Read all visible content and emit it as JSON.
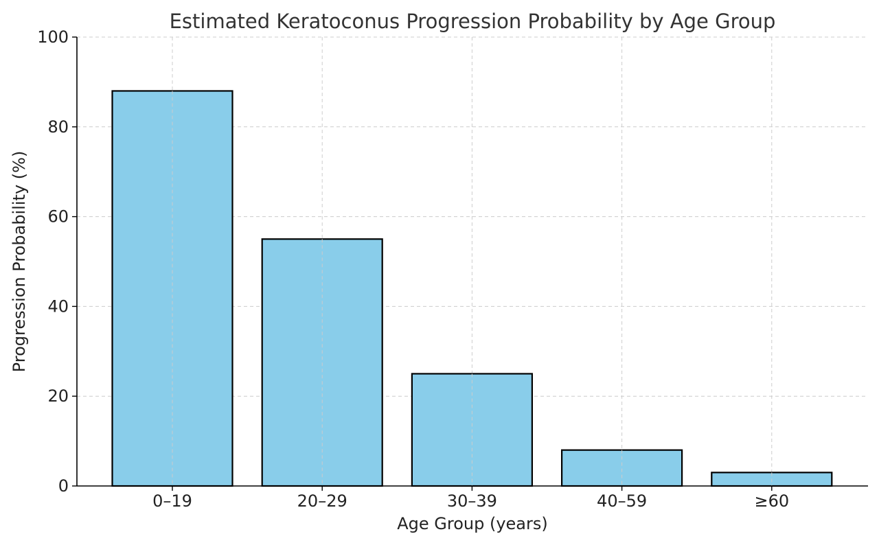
{
  "chart_data": {
    "type": "bar",
    "title": "Estimated Keratoconus Progression Probability by Age Group",
    "xlabel": "Age Group (years)",
    "ylabel": "Progression Probability (%)",
    "categories": [
      "0–19",
      "20–29",
      "30–39",
      "40–59",
      "≥60"
    ],
    "values": [
      88,
      55,
      25,
      8,
      3
    ],
    "ylim": [
      0,
      100
    ],
    "yticks": [
      0,
      20,
      40,
      60,
      80,
      100
    ],
    "grid": true,
    "legend": "none",
    "colors": {
      "bar_fill": "#89CDEA",
      "bar_edge": "#000000",
      "grid": "#cccccc"
    }
  }
}
